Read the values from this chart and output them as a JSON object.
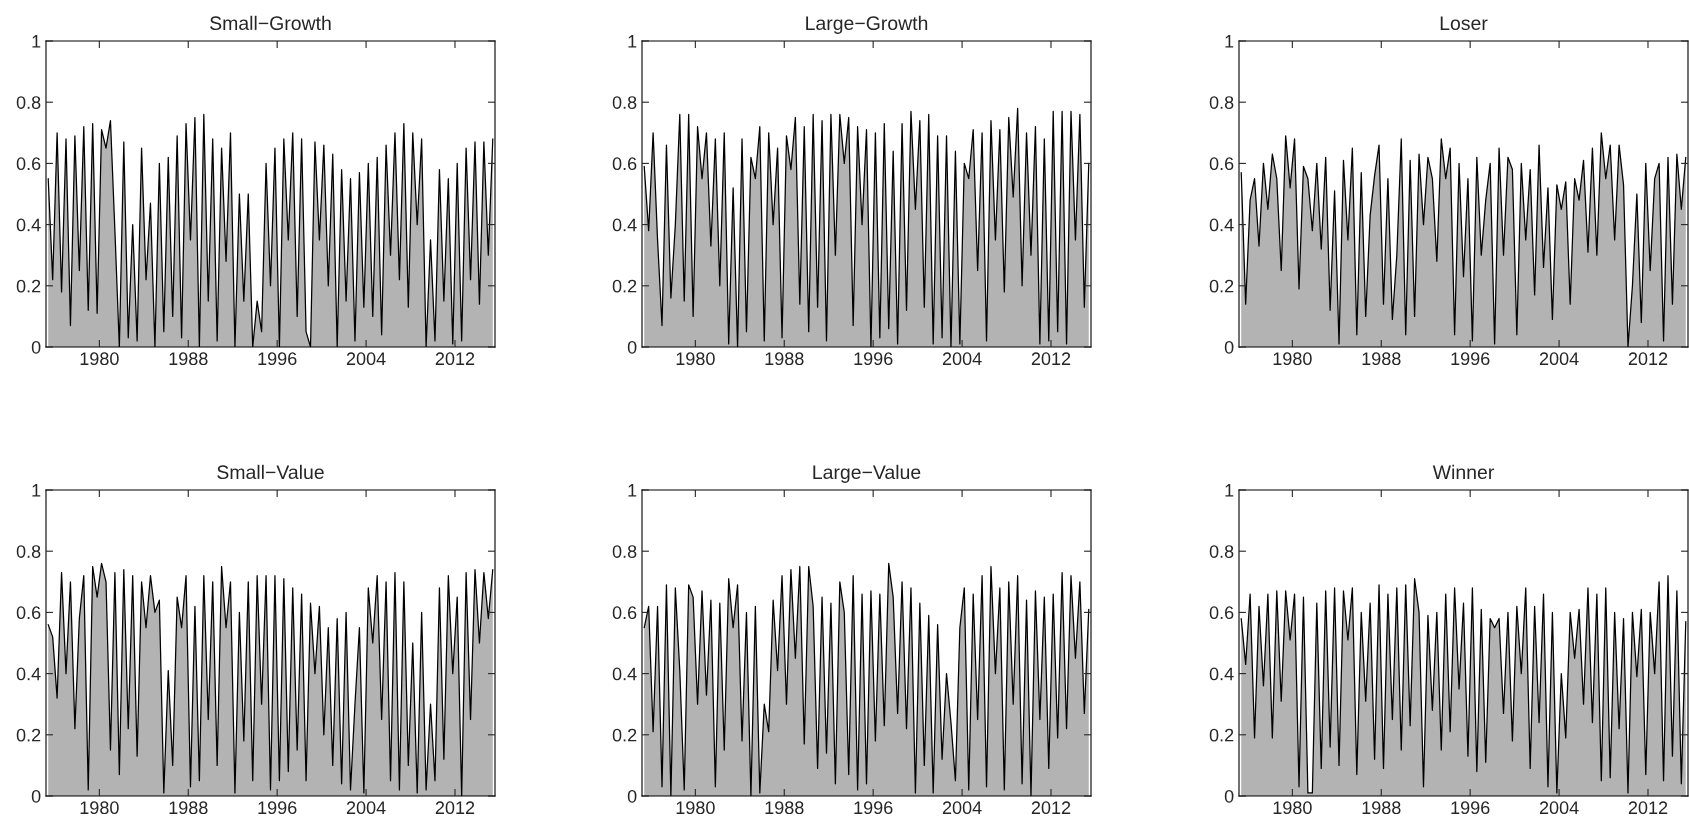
{
  "chart_data": [
    {
      "type": "area",
      "title": "Small−Growth",
      "xlim": [
        1975.2,
        2015.6
      ],
      "ylim": [
        0,
        1
      ],
      "xticks": [
        1980,
        1988,
        1996,
        2004,
        2012
      ],
      "yticks": [
        0,
        0.2,
        0.4,
        0.6,
        0.8,
        1
      ],
      "x": [
        1975.4,
        1975.8,
        1976.2,
        1976.6,
        1977.0,
        1977.4,
        1977.8,
        1978.2,
        1978.6,
        1979.0,
        1979.4,
        1979.8,
        1980.2,
        1980.6,
        1981.0,
        1981.4,
        1981.8,
        1982.2,
        1982.6,
        1983.0,
        1983.4,
        1983.8,
        1984.2,
        1984.6,
        1985.0,
        1985.4,
        1985.8,
        1986.2,
        1986.6,
        1987.0,
        1987.4,
        1987.8,
        1988.2,
        1988.6,
        1989.0,
        1989.4,
        1989.8,
        1990.2,
        1990.6,
        1991.0,
        1991.4,
        1991.8,
        1992.2,
        1992.6,
        1993.0,
        1993.4,
        1993.8,
        1994.2,
        1994.6,
        1995.0,
        1995.4,
        1995.8,
        1996.2,
        1996.6,
        1997.0,
        1997.4,
        1997.8,
        1998.2,
        1998.6,
        1999.0,
        1999.4,
        1999.8,
        2000.2,
        2000.6,
        2001.0,
        2001.4,
        2001.8,
        2002.2,
        2002.6,
        2003.0,
        2003.4,
        2003.8,
        2004.2,
        2004.6,
        2005.0,
        2005.4,
        2005.8,
        2006.2,
        2006.6,
        2007.0,
        2007.4,
        2007.8,
        2008.2,
        2008.6,
        2009.0,
        2009.4,
        2009.8,
        2010.2,
        2010.6,
        2011.0,
        2011.4,
        2011.8,
        2012.2,
        2012.6,
        2013.0,
        2013.4,
        2013.8,
        2014.2,
        2014.6,
        2015.0,
        2015.4
      ],
      "series": [
        {
          "color": "#b3b3b3",
          "values": [
            0.55,
            0.22,
            0.7,
            0.18,
            0.68,
            0.07,
            0.69,
            0.25,
            0.72,
            0.12,
            0.73,
            0.11,
            0.71,
            0.65,
            0.74,
            0.38,
            0,
            0.67,
            0.03,
            0.4,
            0.02,
            0.65,
            0.22,
            0.47,
            0,
            0.6,
            0.05,
            0.62,
            0.1,
            0.69,
            0.03,
            0.73,
            0.35,
            0.75,
            0,
            0.76,
            0.15,
            0.68,
            0.02,
            0.65,
            0.28,
            0.7,
            0,
            0.5,
            0.15,
            0.5,
            0,
            0.15,
            0.05,
            0.6,
            0.2,
            0.65,
            0,
            0.68,
            0.35,
            0.7,
            0.1,
            0.68,
            0.05,
            0,
            0.67,
            0.35,
            0.66,
            0.2,
            0.63,
            0,
            0.58,
            0.15,
            0.55,
            0.02,
            0.57,
            0.13,
            0.6,
            0.1,
            0.62,
            0.04,
            0.66,
            0.3,
            0.7,
            0.22,
            0.73,
            0.13,
            0.7,
            0.4,
            0.68,
            0,
            0.35,
            0.02,
            0.58,
            0.15,
            0.55,
            0.01,
            0.6,
            0.02,
            0.65,
            0.22,
            0.67,
            0.14,
            0.67,
            0.3,
            0.68
          ]
        }
      ]
    },
    {
      "type": "area",
      "title": "Large−Growth",
      "xlim": [
        1975.2,
        2015.6
      ],
      "ylim": [
        0,
        1
      ],
      "xticks": [
        1980,
        1988,
        1996,
        2004,
        2012
      ],
      "yticks": [
        0,
        0.2,
        0.4,
        0.6,
        0.8,
        1
      ],
      "x": [
        1975.4,
        1975.8,
        1976.2,
        1976.6,
        1977.0,
        1977.4,
        1977.8,
        1978.2,
        1978.6,
        1979.0,
        1979.4,
        1979.8,
        1980.2,
        1980.6,
        1981.0,
        1981.4,
        1981.8,
        1982.2,
        1982.6,
        1983.0,
        1983.4,
        1983.8,
        1984.2,
        1984.6,
        1985.0,
        1985.4,
        1985.8,
        1986.2,
        1986.6,
        1987.0,
        1987.4,
        1987.8,
        1988.2,
        1988.6,
        1989.0,
        1989.4,
        1989.8,
        1990.2,
        1990.6,
        1991.0,
        1991.4,
        1991.8,
        1992.2,
        1992.6,
        1993.0,
        1993.4,
        1993.8,
        1994.2,
        1994.6,
        1995.0,
        1995.4,
        1995.8,
        1996.2,
        1996.6,
        1997.0,
        1997.4,
        1997.8,
        1998.2,
        1998.6,
        1999.0,
        1999.4,
        1999.8,
        2000.2,
        2000.6,
        2001.0,
        2001.4,
        2001.8,
        2002.2,
        2002.6,
        2003.0,
        2003.4,
        2003.8,
        2004.2,
        2004.6,
        2005.0,
        2005.4,
        2005.8,
        2006.2,
        2006.6,
        2007.0,
        2007.4,
        2007.8,
        2008.2,
        2008.6,
        2009.0,
        2009.4,
        2009.8,
        2010.2,
        2010.6,
        2011.0,
        2011.4,
        2011.8,
        2012.2,
        2012.6,
        2013.0,
        2013.4,
        2013.8,
        2014.2,
        2014.6,
        2015.0,
        2015.4
      ],
      "series": [
        {
          "color": "#b3b3b3",
          "values": [
            0.59,
            0.38,
            0.7,
            0.35,
            0.07,
            0.66,
            0.16,
            0.4,
            0.76,
            0.15,
            0.76,
            0.1,
            0.72,
            0.55,
            0.7,
            0.33,
            0.68,
            0.2,
            0.7,
            0.01,
            0.52,
            0,
            0.68,
            0.05,
            0.62,
            0.55,
            0.72,
            0.02,
            0.7,
            0.4,
            0.65,
            0.03,
            0.69,
            0.58,
            0.75,
            0.14,
            0.72,
            0.05,
            0.76,
            0.13,
            0.74,
            0.02,
            0.76,
            0.3,
            0.76,
            0.6,
            0.75,
            0.07,
            0.72,
            0.4,
            0.71,
            0,
            0.7,
            0.03,
            0.73,
            0.06,
            0.64,
            0.01,
            0.73,
            0.12,
            0.77,
            0.45,
            0.74,
            0.13,
            0.76,
            0.01,
            0.69,
            0.03,
            0.69,
            0,
            0.64,
            0.01,
            0.6,
            0.55,
            0.71,
            0.25,
            0.7,
            0.02,
            0.74,
            0.35,
            0.71,
            0.18,
            0.75,
            0.49,
            0.78,
            0.2,
            0.7,
            0.3,
            0.72,
            0.01,
            0.68,
            0.02,
            0.77,
            0.05,
            0.77,
            0.01,
            0.77,
            0.35,
            0.76,
            0.13,
            0.6
          ]
        }
      ]
    },
    {
      "type": "area",
      "title": "Loser",
      "xlim": [
        1975.2,
        2015.6
      ],
      "ylim": [
        0,
        1
      ],
      "xticks": [
        1980,
        1988,
        1996,
        2004,
        2012
      ],
      "yticks": [
        0,
        0.2,
        0.4,
        0.6,
        0.8,
        1
      ],
      "x": [
        1975.4,
        1975.8,
        1976.2,
        1976.6,
        1977.0,
        1977.4,
        1977.8,
        1978.2,
        1978.6,
        1979.0,
        1979.4,
        1979.8,
        1980.2,
        1980.6,
        1981.0,
        1981.4,
        1981.8,
        1982.2,
        1982.6,
        1983.0,
        1983.4,
        1983.8,
        1984.2,
        1984.6,
        1985.0,
        1985.4,
        1985.8,
        1986.2,
        1986.6,
        1987.0,
        1987.4,
        1987.8,
        1988.2,
        1988.6,
        1989.0,
        1989.4,
        1989.8,
        1990.2,
        1990.6,
        1991.0,
        1991.4,
        1991.8,
        1992.2,
        1992.6,
        1993.0,
        1993.4,
        1993.8,
        1994.2,
        1994.6,
        1995.0,
        1995.4,
        1995.8,
        1996.2,
        1996.6,
        1997.0,
        1997.4,
        1997.8,
        1998.2,
        1998.6,
        1999.0,
        1999.4,
        1999.8,
        2000.2,
        2000.6,
        2001.0,
        2001.4,
        2001.8,
        2002.2,
        2002.6,
        2003.0,
        2003.4,
        2003.8,
        2004.2,
        2004.6,
        2005.0,
        2005.4,
        2005.8,
        2006.2,
        2006.6,
        2007.0,
        2007.4,
        2007.8,
        2008.2,
        2008.6,
        2009.0,
        2009.4,
        2009.8,
        2010.2,
        2010.6,
        2011.0,
        2011.4,
        2011.8,
        2012.2,
        2012.6,
        2013.0,
        2013.4,
        2013.8,
        2014.2,
        2014.6,
        2015.0,
        2015.4
      ],
      "series": [
        {
          "color": "#b3b3b3",
          "values": [
            0.57,
            0.14,
            0.48,
            0.55,
            0.33,
            0.6,
            0.45,
            0.63,
            0.55,
            0.25,
            0.69,
            0.52,
            0.68,
            0.19,
            0.59,
            0.55,
            0.38,
            0.6,
            0.32,
            0.62,
            0.12,
            0.51,
            0.01,
            0.61,
            0.35,
            0.65,
            0.04,
            0.57,
            0.1,
            0.43,
            0.56,
            0.66,
            0.14,
            0.55,
            0.09,
            0.3,
            0.68,
            0.04,
            0.61,
            0.1,
            0.63,
            0.4,
            0.62,
            0.55,
            0.28,
            0.68,
            0.55,
            0.65,
            0.04,
            0.6,
            0.23,
            0.55,
            0.02,
            0.62,
            0.3,
            0.48,
            0.6,
            0.01,
            0.65,
            0.3,
            0.62,
            0.58,
            0.04,
            0.6,
            0.35,
            0.58,
            0.17,
            0.66,
            0.26,
            0.52,
            0.09,
            0.53,
            0.45,
            0.54,
            0.14,
            0.55,
            0.48,
            0.61,
            0.31,
            0.65,
            0.3,
            0.7,
            0.55,
            0.66,
            0.35,
            0.66,
            0.53,
            0,
            0.2,
            0.5,
            0.08,
            0.6,
            0.25,
            0.55,
            0.6,
            0.02,
            0.62,
            0.14,
            0.63,
            0.45,
            0.62
          ]
        }
      ]
    },
    {
      "type": "area",
      "title": "Small−Value",
      "xlim": [
        1975.2,
        2015.6
      ],
      "ylim": [
        0,
        1
      ],
      "xticks": [
        1980,
        1988,
        1996,
        2004,
        2012
      ],
      "yticks": [
        0,
        0.2,
        0.4,
        0.6,
        0.8,
        1
      ],
      "x": [
        1975.4,
        1975.8,
        1976.2,
        1976.6,
        1977.0,
        1977.4,
        1977.8,
        1978.2,
        1978.6,
        1979.0,
        1979.4,
        1979.8,
        1980.2,
        1980.6,
        1981.0,
        1981.4,
        1981.8,
        1982.2,
        1982.6,
        1983.0,
        1983.4,
        1983.8,
        1984.2,
        1984.6,
        1985.0,
        1985.4,
        1985.8,
        1986.2,
        1986.6,
        1987.0,
        1987.4,
        1987.8,
        1988.2,
        1988.6,
        1989.0,
        1989.4,
        1989.8,
        1990.2,
        1990.6,
        1991.0,
        1991.4,
        1991.8,
        1992.2,
        1992.6,
        1993.0,
        1993.4,
        1993.8,
        1994.2,
        1994.6,
        1995.0,
        1995.4,
        1995.8,
        1996.2,
        1996.6,
        1997.0,
        1997.4,
        1997.8,
        1998.2,
        1998.6,
        1999.0,
        1999.4,
        1999.8,
        2000.2,
        2000.6,
        2001.0,
        2001.4,
        2001.8,
        2002.2,
        2002.6,
        2003.0,
        2003.4,
        2003.8,
        2004.2,
        2004.6,
        2005.0,
        2005.4,
        2005.8,
        2006.2,
        2006.6,
        2007.0,
        2007.4,
        2007.8,
        2008.2,
        2008.6,
        2009.0,
        2009.4,
        2009.8,
        2010.2,
        2010.6,
        2011.0,
        2011.4,
        2011.8,
        2012.2,
        2012.6,
        2013.0,
        2013.4,
        2013.8,
        2014.2,
        2014.6,
        2015.0,
        2015.4
      ],
      "series": [
        {
          "color": "#b3b3b3",
          "values": [
            0.56,
            0.52,
            0.32,
            0.73,
            0.4,
            0.7,
            0.22,
            0.58,
            0.72,
            0.02,
            0.75,
            0.65,
            0.76,
            0.7,
            0.15,
            0.73,
            0.07,
            0.74,
            0.22,
            0.72,
            0.13,
            0.7,
            0.55,
            0.72,
            0.6,
            0.64,
            0.01,
            0.41,
            0.1,
            0.65,
            0.55,
            0.72,
            0.03,
            0.62,
            0.05,
            0.72,
            0.25,
            0.7,
            0.1,
            0.75,
            0.55,
            0.7,
            0.01,
            0.6,
            0.18,
            0.7,
            0.05,
            0.72,
            0.3,
            0.72,
            0.02,
            0.72,
            0.05,
            0.71,
            0.08,
            0.68,
            0.15,
            0.66,
            0.05,
            0.63,
            0.4,
            0.62,
            0.2,
            0.55,
            0.1,
            0.58,
            0.04,
            0.6,
            0.02,
            0.3,
            0.55,
            0.01,
            0.68,
            0.5,
            0.72,
            0.25,
            0.7,
            0.05,
            0.73,
            0.02,
            0.7,
            0.1,
            0.5,
            0.01,
            0.6,
            0.02,
            0.3,
            0.05,
            0.68,
            0.12,
            0.72,
            0.4,
            0.65,
            0,
            0.73,
            0.25,
            0.74,
            0.5,
            0.73,
            0.58,
            0.74
          ]
        }
      ]
    },
    {
      "type": "area",
      "title": "Large−Value",
      "xlim": [
        1975.2,
        2015.6
      ],
      "ylim": [
        0,
        1
      ],
      "xticks": [
        1980,
        1988,
        1996,
        2004,
        2012
      ],
      "yticks": [
        0,
        0.2,
        0.4,
        0.6,
        0.8,
        1
      ],
      "x": [
        1975.4,
        1975.8,
        1976.2,
        1976.6,
        1977.0,
        1977.4,
        1977.8,
        1978.2,
        1978.6,
        1979.0,
        1979.4,
        1979.8,
        1980.2,
        1980.6,
        1981.0,
        1981.4,
        1981.8,
        1982.2,
        1982.6,
        1983.0,
        1983.4,
        1983.8,
        1984.2,
        1984.6,
        1985.0,
        1985.4,
        1985.8,
        1986.2,
        1986.6,
        1987.0,
        1987.4,
        1987.8,
        1988.2,
        1988.6,
        1989.0,
        1989.4,
        1989.8,
        1990.2,
        1990.6,
        1991.0,
        1991.4,
        1991.8,
        1992.2,
        1992.6,
        1993.0,
        1993.4,
        1993.8,
        1994.2,
        1994.6,
        1995.0,
        1995.4,
        1995.8,
        1996.2,
        1996.6,
        1997.0,
        1997.4,
        1997.8,
        1998.2,
        1998.6,
        1999.0,
        1999.4,
        1999.8,
        2000.2,
        2000.6,
        2001.0,
        2001.4,
        2001.8,
        2002.2,
        2002.6,
        2003.0,
        2003.4,
        2003.8,
        2004.2,
        2004.6,
        2005.0,
        2005.4,
        2005.8,
        2006.2,
        2006.6,
        2007.0,
        2007.4,
        2007.8,
        2008.2,
        2008.6,
        2009.0,
        2009.4,
        2009.8,
        2010.2,
        2010.6,
        2011.0,
        2011.4,
        2011.8,
        2012.2,
        2012.6,
        2013.0,
        2013.4,
        2013.8,
        2014.2,
        2014.6,
        2015.0,
        2015.4
      ],
      "series": [
        {
          "color": "#b3b3b3",
          "values": [
            0.55,
            0.62,
            0.21,
            0.62,
            0.03,
            0.69,
            0,
            0.68,
            0.41,
            0.02,
            0.69,
            0.65,
            0.3,
            0.67,
            0.33,
            0.64,
            0.03,
            0.63,
            0.15,
            0.71,
            0.55,
            0.69,
            0.18,
            0.6,
            0,
            0.62,
            0.01,
            0.3,
            0.21,
            0.64,
            0.41,
            0.72,
            0.3,
            0.74,
            0.45,
            0.75,
            0.17,
            0.75,
            0.62,
            0.09,
            0.65,
            0.14,
            0.63,
            0.04,
            0.7,
            0.6,
            0.07,
            0.72,
            0.02,
            0.66,
            0.04,
            0.67,
            0.18,
            0.66,
            0.23,
            0.76,
            0.65,
            0.27,
            0.7,
            0.22,
            0.68,
            0.01,
            0.63,
            0.1,
            0.59,
            0.01,
            0.56,
            0.12,
            0.4,
            0.24,
            0.05,
            0.55,
            0.68,
            0.02,
            0.66,
            0.25,
            0.72,
            0.03,
            0.75,
            0.4,
            0.68,
            0.02,
            0.7,
            0.3,
            0.72,
            0.04,
            0.64,
            0,
            0.67,
            0.25,
            0.65,
            0.09,
            0.66,
            0.19,
            0.73,
            0.22,
            0.72,
            0.45,
            0.7,
            0.27,
            0.61
          ]
        }
      ]
    },
    {
      "type": "area",
      "title": "Winner",
      "xlim": [
        1975.2,
        2015.6
      ],
      "ylim": [
        0,
        1
      ],
      "xticks": [
        1980,
        1988,
        1996,
        2004,
        2012
      ],
      "yticks": [
        0,
        0.2,
        0.4,
        0.6,
        0.8,
        1
      ],
      "x": [
        1975.4,
        1975.8,
        1976.2,
        1976.6,
        1977.0,
        1977.4,
        1977.8,
        1978.2,
        1978.6,
        1979.0,
        1979.4,
        1979.8,
        1980.2,
        1980.6,
        1981.0,
        1981.4,
        1981.8,
        1982.2,
        1982.6,
        1983.0,
        1983.4,
        1983.8,
        1984.2,
        1984.6,
        1985.0,
        1985.4,
        1985.8,
        1986.2,
        1986.6,
        1987.0,
        1987.4,
        1987.8,
        1988.2,
        1988.6,
        1989.0,
        1989.4,
        1989.8,
        1990.2,
        1990.6,
        1991.0,
        1991.4,
        1991.8,
        1992.2,
        1992.6,
        1993.0,
        1993.4,
        1993.8,
        1994.2,
        1994.6,
        1995.0,
        1995.4,
        1995.8,
        1996.2,
        1996.6,
        1997.0,
        1997.4,
        1997.8,
        1998.2,
        1998.6,
        1999.0,
        1999.4,
        1999.8,
        2000.2,
        2000.6,
        2001.0,
        2001.4,
        2001.8,
        2002.2,
        2002.6,
        2003.0,
        2003.4,
        2003.8,
        2004.2,
        2004.6,
        2005.0,
        2005.4,
        2005.8,
        2006.2,
        2006.6,
        2007.0,
        2007.4,
        2007.8,
        2008.2,
        2008.6,
        2009.0,
        2009.4,
        2009.8,
        2010.2,
        2010.6,
        2011.0,
        2011.4,
        2011.8,
        2012.2,
        2012.6,
        2013.0,
        2013.4,
        2013.8,
        2014.2,
        2014.6,
        2015.0,
        2015.4
      ],
      "series": [
        {
          "color": "#b3b3b3",
          "values": [
            0.58,
            0.43,
            0.66,
            0.19,
            0.62,
            0.36,
            0.66,
            0.19,
            0.67,
            0.31,
            0.67,
            0.51,
            0.66,
            0.03,
            0.65,
            0.01,
            0.01,
            0.63,
            0.09,
            0.67,
            0.16,
            0.68,
            0.1,
            0.67,
            0.51,
            0.68,
            0.07,
            0.6,
            0.31,
            0.63,
            0.12,
            0.69,
            0.09,
            0.66,
            0.25,
            0.68,
            0.15,
            0.69,
            0.23,
            0.71,
            0.6,
            0.03,
            0.59,
            0.28,
            0.6,
            0.15,
            0.66,
            0.21,
            0.68,
            0.35,
            0.63,
            0.13,
            0.68,
            0.08,
            0.61,
            0.11,
            0.58,
            0.55,
            0.58,
            0.27,
            0.6,
            0.18,
            0.62,
            0.4,
            0.68,
            0.09,
            0.62,
            0.24,
            0.66,
            0.03,
            0.6,
            0.01,
            0.4,
            0.19,
            0.6,
            0.45,
            0.61,
            0.3,
            0.68,
            0.24,
            0.66,
            0.05,
            0.68,
            0.06,
            0.6,
            0.22,
            0.58,
            0.01,
            0.6,
            0.39,
            0.61,
            0.07,
            0.6,
            0.4,
            0.7,
            0.05,
            0.72,
            0.13,
            0.67,
            0.04,
            0.57
          ]
        }
      ]
    }
  ]
}
